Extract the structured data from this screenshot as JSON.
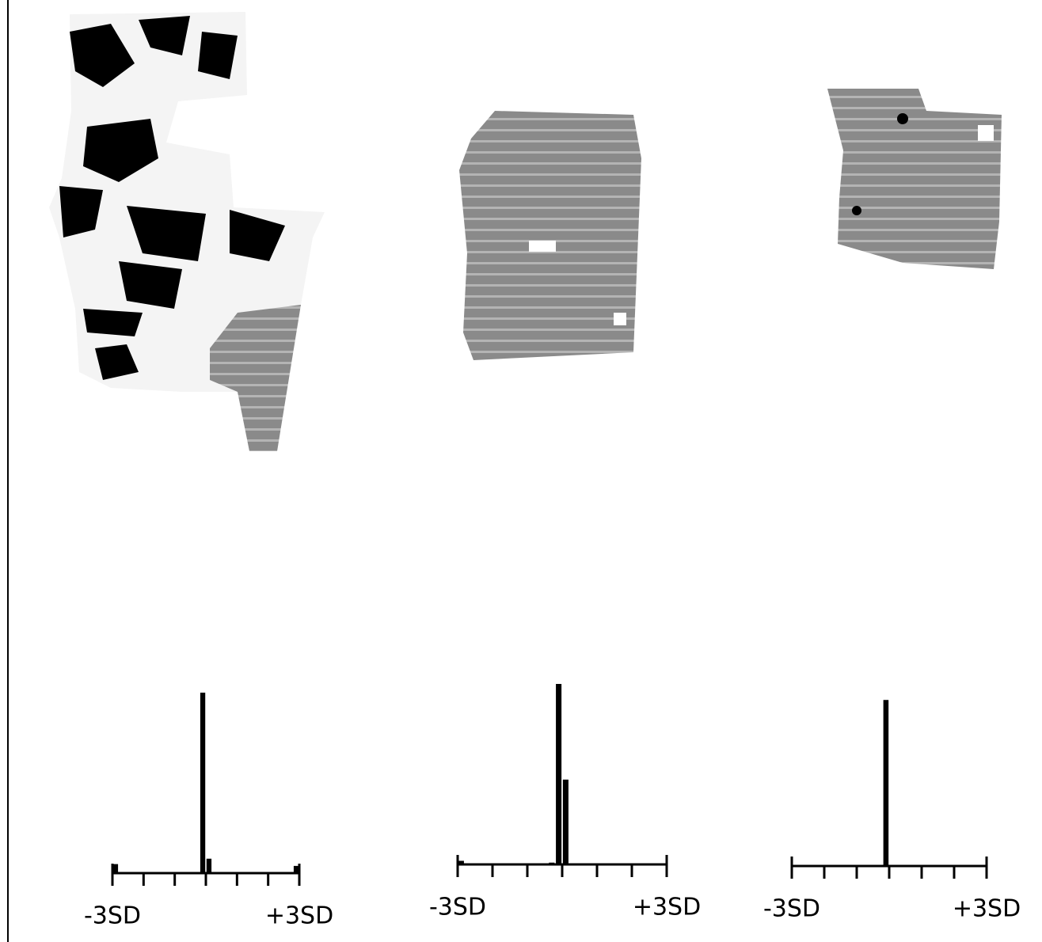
{
  "chart_data": [
    {
      "type": "histogram",
      "bins": [
        -3,
        -2.8,
        -2.6,
        -2.4,
        -2.2,
        -2,
        -1.8,
        -1.6,
        -1.4,
        -1.2,
        -1,
        -0.8,
        -0.6,
        -0.4,
        -0.2,
        0,
        0.2,
        0.4,
        0.6,
        0.8,
        1,
        1.2,
        1.4,
        1.6,
        1.8,
        2,
        2.2,
        2.4,
        2.6,
        2.8,
        3
      ],
      "values": [
        5,
        0,
        0,
        0,
        0,
        0,
        0,
        0,
        0,
        0,
        0,
        0,
        0,
        0,
        100,
        8,
        0,
        0,
        0,
        0,
        0,
        0,
        0,
        0,
        0,
        0,
        0,
        0,
        0,
        4
      ],
      "color": "#000000",
      "xlim": [
        -3,
        3
      ],
      "ylim": [
        0,
        100
      ],
      "xticks": [
        {
          "value": -3,
          "label": "-3SD"
        },
        -2,
        -1,
        0,
        1,
        2,
        {
          "value": 3,
          "label": "+3SD"
        }
      ]
    },
    {
      "type": "histogram",
      "bins": [
        -3,
        -2.8,
        -2.6,
        -2.4,
        -2.2,
        -2,
        -1.8,
        -1.6,
        -1.4,
        -1.2,
        -1,
        -0.8,
        -0.6,
        -0.4,
        -0.2,
        0,
        0.2,
        0.4,
        0.6,
        0.8,
        1,
        1.2,
        1.4,
        1.6,
        1.8,
        2,
        2.2,
        2.4,
        2.6,
        2.8,
        3
      ],
      "values": [
        2,
        0,
        0,
        0,
        0,
        0,
        0,
        0,
        0,
        0,
        0,
        0,
        0,
        1,
        100,
        47,
        0,
        0,
        0,
        0,
        0,
        0,
        0,
        0,
        0,
        0,
        0,
        0,
        0,
        0
      ],
      "color": "#000000",
      "xlim": [
        -3,
        3
      ],
      "ylim": [
        0,
        100
      ],
      "xticks": [
        {
          "value": -3,
          "label": "-3SD"
        },
        -2,
        -1,
        0,
        1,
        2,
        {
          "value": 3,
          "label": "+3SD"
        }
      ]
    },
    {
      "type": "histogram",
      "bins": [
        -3,
        -2.8,
        -2.6,
        -2.4,
        -2.2,
        -2,
        -1.8,
        -1.6,
        -1.4,
        -1.2,
        -1,
        -0.8,
        -0.6,
        -0.4,
        -0.2,
        0,
        0.2,
        0.4,
        0.6,
        0.8,
        1,
        1.2,
        1.4,
        1.6,
        1.8,
        2,
        2.2,
        2.4,
        2.6,
        2.8,
        3
      ],
      "values": [
        0,
        0,
        0,
        0,
        0,
        0,
        0,
        0,
        0,
        0,
        0,
        0,
        0,
        0,
        92,
        0,
        0,
        0,
        0,
        0,
        0,
        0,
        0,
        0,
        0,
        0,
        0,
        0,
        0,
        0
      ],
      "color": "#000000",
      "xlim": [
        -3,
        3
      ],
      "ylim": [
        0,
        100
      ],
      "xticks": [
        {
          "value": -3,
          "label": "-3SD"
        },
        -2,
        -1,
        0,
        1,
        2,
        {
          "value": 3,
          "label": "+3SD"
        }
      ]
    }
  ]
}
